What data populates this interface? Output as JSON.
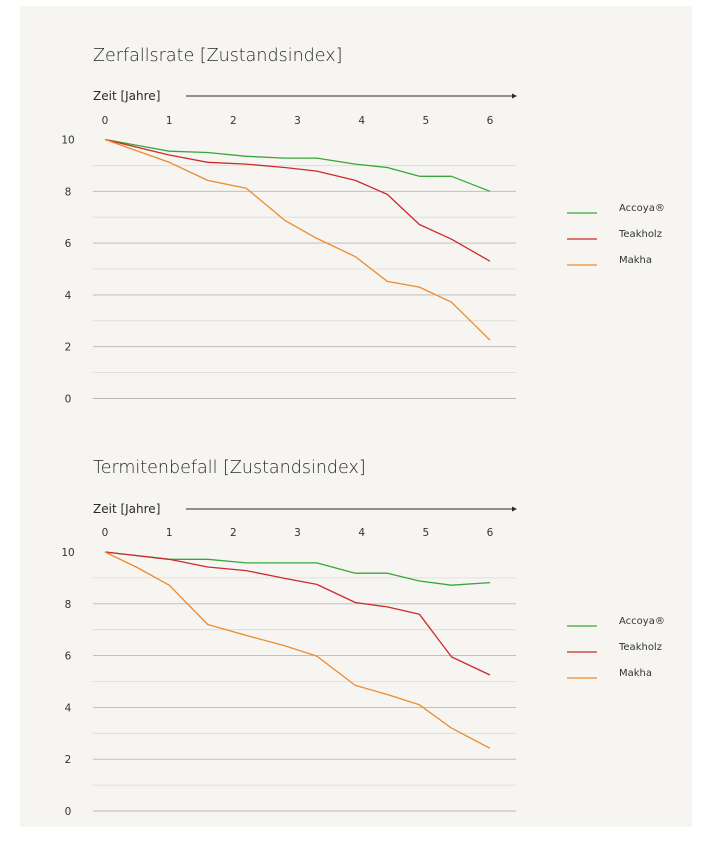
{
  "colors": {
    "background": "#f6f5f2",
    "accoya": "#3aa63a",
    "teakholz": "#cc2b2b",
    "makha": "#ee8a2c"
  },
  "chart_data": [
    {
      "type": "line",
      "title": "Zerfallsrate [Zustandsindex]",
      "xlabel": "Zeit [Jahre]",
      "xlim": [
        0,
        6
      ],
      "ylim": [
        0,
        10
      ],
      "x_ticks": [
        "0",
        "1",
        "2",
        "3",
        "4",
        "5",
        "6"
      ],
      "y_ticks": [
        "0",
        "2",
        "4",
        "6",
        "8",
        "10"
      ],
      "grid": true,
      "legend": "right",
      "series": [
        {
          "name": "Accoya®",
          "color": "#3aa63a",
          "x": [
            0,
            1,
            1.6,
            2.2,
            2.8,
            3.3,
            3.9,
            4.4,
            4.9,
            5.4,
            6
          ],
          "y": [
            10,
            9.55,
            9.5,
            9.35,
            9.28,
            9.28,
            9.05,
            8.92,
            8.58,
            8.58,
            8.0
          ]
        },
        {
          "name": "Teakholz",
          "color": "#cc2b2b",
          "x": [
            0,
            1,
            1.6,
            2.2,
            2.8,
            3.3,
            3.9,
            4.4,
            4.9,
            5.4,
            6
          ],
          "y": [
            10,
            9.4,
            9.12,
            9.05,
            8.92,
            8.78,
            8.42,
            7.88,
            6.72,
            6.15,
            5.3
          ]
        },
        {
          "name": "Makha",
          "color": "#ee8a2c",
          "x": [
            0,
            1,
            1.6,
            2.2,
            2.8,
            3.3,
            3.9,
            4.4,
            4.9,
            5.4,
            6
          ],
          "y": [
            10,
            9.12,
            8.42,
            8.12,
            6.88,
            6.18,
            5.48,
            4.52,
            4.3,
            3.72,
            2.25
          ]
        }
      ]
    },
    {
      "type": "line",
      "title": "Termitenbefall [Zustandsindex]",
      "xlabel": "Zeit [Jahre]",
      "xlim": [
        0,
        6
      ],
      "ylim": [
        0,
        10
      ],
      "x_ticks": [
        "0",
        "1",
        "2",
        "3",
        "4",
        "5",
        "6"
      ],
      "y_ticks": [
        "0",
        "2",
        "4",
        "6",
        "8",
        "10"
      ],
      "grid": true,
      "legend": "right",
      "series": [
        {
          "name": "Accoya®",
          "color": "#3aa63a",
          "x": [
            0,
            1,
            1.6,
            2.2,
            2.8,
            3.3,
            3.9,
            4.4,
            4.9,
            5.4,
            6
          ],
          "y": [
            10,
            9.72,
            9.72,
            9.58,
            9.58,
            9.58,
            9.18,
            9.18,
            8.88,
            8.72,
            8.82
          ]
        },
        {
          "name": "Teakholz",
          "color": "#cc2b2b",
          "x": [
            0,
            1,
            1.6,
            2.2,
            2.8,
            3.3,
            3.9,
            4.4,
            4.9,
            5.4,
            6
          ],
          "y": [
            10,
            9.72,
            9.42,
            9.28,
            8.98,
            8.75,
            8.05,
            7.88,
            7.6,
            5.95,
            5.25
          ]
        },
        {
          "name": "Makha",
          "color": "#ee8a2c",
          "x": [
            0,
            0.5,
            1,
            1.6,
            2.2,
            2.8,
            3.3,
            3.9,
            4.4,
            4.9,
            5.4,
            6
          ],
          "y": [
            10,
            9.4,
            8.72,
            7.2,
            6.78,
            6.38,
            5.98,
            4.85,
            4.5,
            4.1,
            3.2,
            2.42
          ]
        }
      ]
    }
  ]
}
